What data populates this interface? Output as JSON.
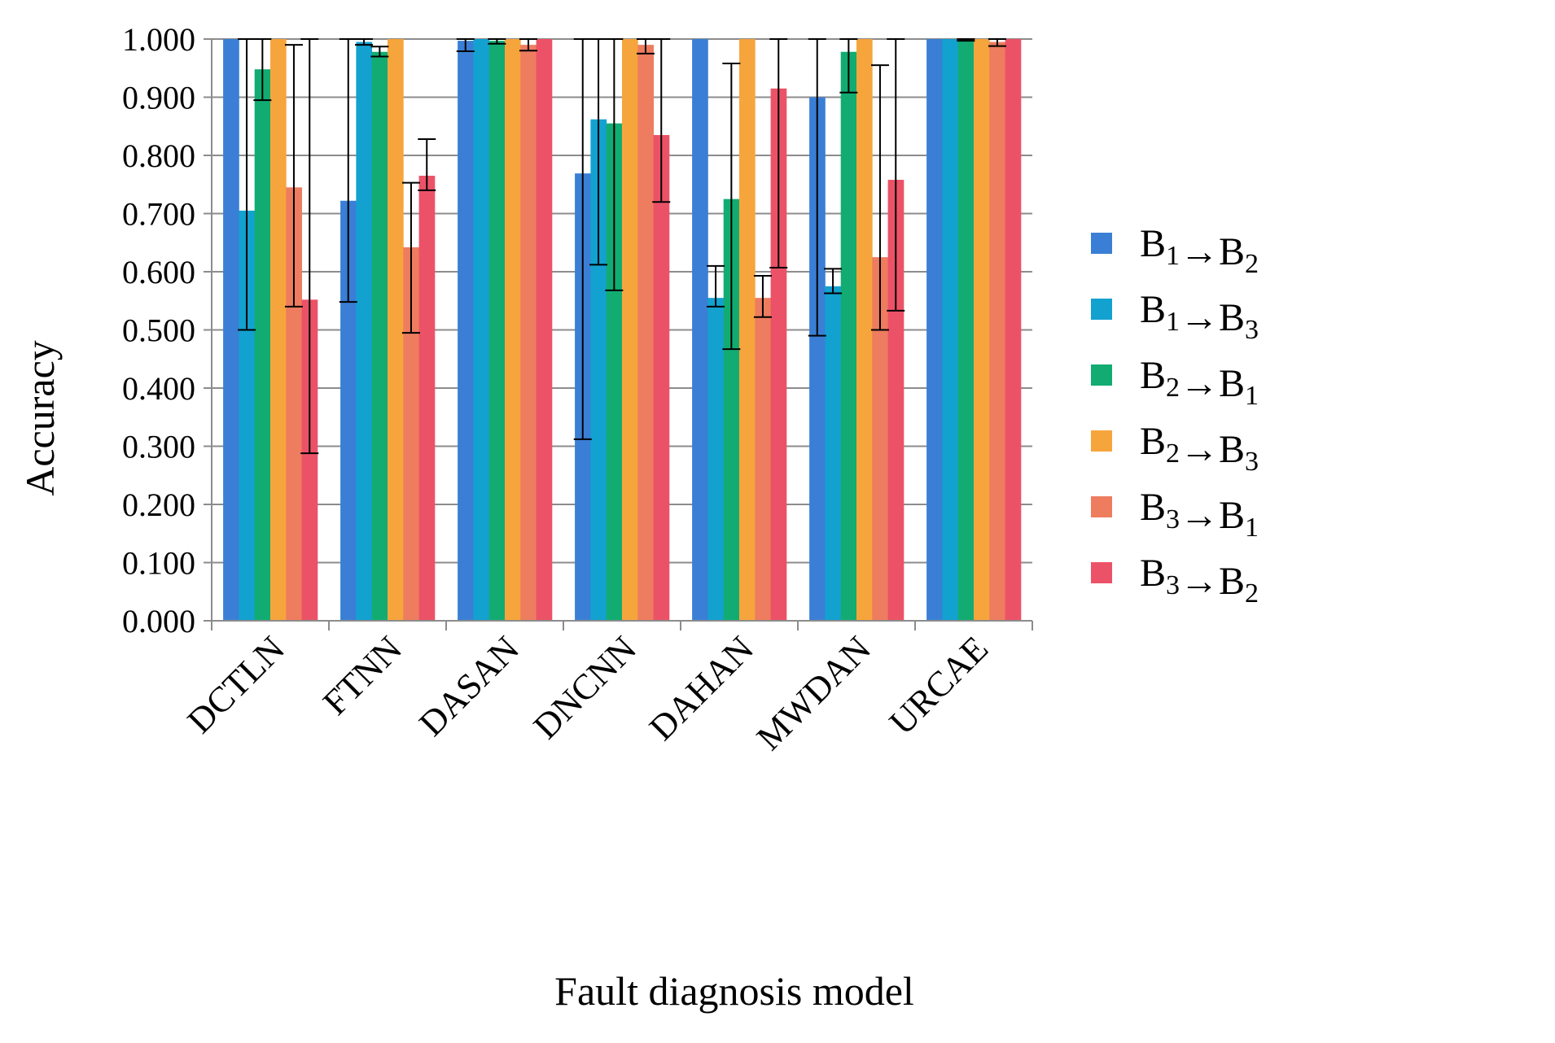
{
  "chart_data": {
    "type": "bar",
    "title": "",
    "xlabel": "Fault diagnosis model",
    "ylabel": "Accuracy",
    "ylim": [
      0,
      1
    ],
    "grid": true,
    "legend_position": "right",
    "categories": [
      "DCTLN",
      "FTNN",
      "DASAN",
      "DNCNN",
      "DAHAN",
      "MWDAN",
      "URCAE"
    ],
    "yticks": [
      "0.000",
      "0.100",
      "0.200",
      "0.300",
      "0.400",
      "0.500",
      "0.600",
      "0.700",
      "0.800",
      "0.900",
      "1.000"
    ],
    "series": [
      {
        "name": "B1→B2",
        "label_base": "B",
        "from_sub": "1",
        "arrow": "→",
        "to_base": "B",
        "to_sub": "2",
        "color": "#3A7FD5",
        "values": [
          1.0,
          0.722,
          0.997,
          0.769,
          1.0,
          0.9,
          1.0
        ],
        "err_low": [
          null,
          0.548,
          0.979,
          0.312,
          null,
          0.49,
          null
        ],
        "err_high": [
          null,
          1.0,
          1.0,
          1.0,
          null,
          1.0,
          null
        ]
      },
      {
        "name": "B1→B3",
        "label_base": "B",
        "from_sub": "1",
        "arrow": "→",
        "to_base": "B",
        "to_sub": "3",
        "color": "#13A1D0",
        "values": [
          0.705,
          0.995,
          1.0,
          0.862,
          0.555,
          0.575,
          1.0
        ],
        "err_low": [
          0.5,
          0.99,
          null,
          0.612,
          0.54,
          0.563,
          null
        ],
        "err_high": [
          1.0,
          1.0,
          null,
          1.0,
          0.61,
          0.605,
          null
        ]
      },
      {
        "name": "B2→B1",
        "label_base": "B",
        "from_sub": "2",
        "arrow": "→",
        "to_base": "B",
        "to_sub": "1",
        "color": "#12AC72",
        "values": [
          0.948,
          0.978,
          0.997,
          0.855,
          0.725,
          0.978,
          1.0
        ],
        "err_low": [
          0.895,
          0.97,
          0.992,
          0.568,
          0.467,
          0.908,
          0.997
        ],
        "err_high": [
          1.0,
          0.987,
          1.0,
          1.0,
          0.958,
          1.0,
          1.0
        ]
      },
      {
        "name": "B2→B3",
        "label_base": "B",
        "from_sub": "2",
        "arrow": "→",
        "to_base": "B",
        "to_sub": "3",
        "color": "#F6A53C",
        "values": [
          1.0,
          1.0,
          1.0,
          1.0,
          1.0,
          1.0,
          1.0
        ],
        "err_low": [
          null,
          null,
          null,
          null,
          null,
          null,
          null
        ],
        "err_high": [
          null,
          null,
          null,
          null,
          null,
          null,
          null
        ]
      },
      {
        "name": "B3→B1",
        "label_base": "B",
        "from_sub": "3",
        "arrow": "→",
        "to_base": "B",
        "to_sub": "1",
        "color": "#EE7C5F",
        "values": [
          0.745,
          0.642,
          0.99,
          0.99,
          0.555,
          0.625,
          0.995
        ],
        "err_low": [
          0.54,
          0.495,
          0.98,
          0.975,
          0.522,
          0.5,
          0.988
        ],
        "err_high": [
          0.99,
          0.753,
          1.0,
          1.0,
          0.593,
          0.955,
          1.0
        ]
      },
      {
        "name": "B3→B2",
        "label_base": "B",
        "from_sub": "3",
        "arrow": "→",
        "to_base": "B",
        "to_sub": "2",
        "color": "#EC5267",
        "values": [
          0.552,
          0.765,
          1.0,
          0.835,
          0.915,
          0.758,
          1.0
        ],
        "err_low": [
          0.288,
          0.74,
          null,
          0.72,
          0.607,
          0.533,
          null
        ],
        "err_high": [
          1.0,
          0.828,
          null,
          1.0,
          1.0,
          1.0,
          null
        ]
      }
    ]
  }
}
